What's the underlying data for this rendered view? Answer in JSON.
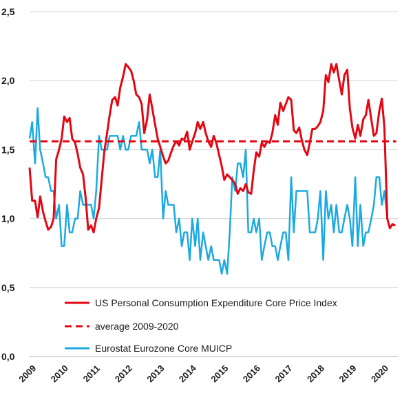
{
  "chart_data": {
    "type": "line",
    "title": "",
    "xlabel": "",
    "ylabel": "",
    "xlim": [
      2009.0,
      2020.5
    ],
    "ylim": [
      0.0,
      2.5
    ],
    "y_ticks": [
      0.0,
      0.5,
      1.0,
      1.5,
      2.0,
      2.5
    ],
    "y_tick_labels": [
      "0,0",
      "0,5",
      "1,0",
      "1,5",
      "2,0",
      "2,5"
    ],
    "x_tick_labels": [
      "2009",
      "2010",
      "2011",
      "2012",
      "2013",
      "2014",
      "2015",
      "2016",
      "2017",
      "2018",
      "2019",
      "2020"
    ],
    "grid": "horizontal",
    "legend_position": "bottom-center",
    "series": [
      {
        "name": "US Personal Consumption Expenditure Core Price Index",
        "color": "#e30613",
        "style": "solid",
        "points": [
          [
            2009.0,
            1.37
          ],
          [
            2009.08,
            1.13
          ],
          [
            2009.17,
            1.13
          ],
          [
            2009.25,
            1.01
          ],
          [
            2009.33,
            1.16
          ],
          [
            2009.42,
            1.05
          ],
          [
            2009.5,
            0.98
          ],
          [
            2009.58,
            0.92
          ],
          [
            2009.67,
            0.94
          ],
          [
            2009.75,
            1.0
          ],
          [
            2009.83,
            1.43
          ],
          [
            2009.92,
            1.5
          ],
          [
            2010.0,
            1.58
          ],
          [
            2010.08,
            1.74
          ],
          [
            2010.17,
            1.7
          ],
          [
            2010.25,
            1.73
          ],
          [
            2010.33,
            1.58
          ],
          [
            2010.42,
            1.55
          ],
          [
            2010.5,
            1.47
          ],
          [
            2010.58,
            1.37
          ],
          [
            2010.67,
            1.32
          ],
          [
            2010.75,
            1.15
          ],
          [
            2010.83,
            0.92
          ],
          [
            2010.92,
            0.95
          ],
          [
            2011.0,
            0.9
          ],
          [
            2011.08,
            1.0
          ],
          [
            2011.17,
            1.08
          ],
          [
            2011.25,
            1.28
          ],
          [
            2011.33,
            1.48
          ],
          [
            2011.42,
            1.62
          ],
          [
            2011.5,
            1.75
          ],
          [
            2011.58,
            1.86
          ],
          [
            2011.67,
            1.88
          ],
          [
            2011.75,
            1.82
          ],
          [
            2011.83,
            1.95
          ],
          [
            2011.92,
            2.03
          ],
          [
            2012.0,
            2.12
          ],
          [
            2012.08,
            2.1
          ],
          [
            2012.17,
            2.07
          ],
          [
            2012.25,
            2.0
          ],
          [
            2012.33,
            1.9
          ],
          [
            2012.42,
            1.88
          ],
          [
            2012.5,
            1.83
          ],
          [
            2012.58,
            1.62
          ],
          [
            2012.67,
            1.72
          ],
          [
            2012.75,
            1.9
          ],
          [
            2012.83,
            1.8
          ],
          [
            2012.92,
            1.68
          ],
          [
            2013.0,
            1.58
          ],
          [
            2013.08,
            1.52
          ],
          [
            2013.17,
            1.45
          ],
          [
            2013.25,
            1.4
          ],
          [
            2013.33,
            1.42
          ],
          [
            2013.42,
            1.48
          ],
          [
            2013.5,
            1.53
          ],
          [
            2013.58,
            1.56
          ],
          [
            2013.67,
            1.53
          ],
          [
            2013.75,
            1.58
          ],
          [
            2013.83,
            1.57
          ],
          [
            2013.92,
            1.63
          ],
          [
            2014.0,
            1.5
          ],
          [
            2014.08,
            1.56
          ],
          [
            2014.17,
            1.62
          ],
          [
            2014.25,
            1.7
          ],
          [
            2014.33,
            1.65
          ],
          [
            2014.42,
            1.7
          ],
          [
            2014.5,
            1.62
          ],
          [
            2014.58,
            1.56
          ],
          [
            2014.67,
            1.52
          ],
          [
            2014.75,
            1.6
          ],
          [
            2014.83,
            1.55
          ],
          [
            2014.92,
            1.46
          ],
          [
            2015.0,
            1.38
          ],
          [
            2015.08,
            1.28
          ],
          [
            2015.17,
            1.32
          ],
          [
            2015.25,
            1.3
          ],
          [
            2015.33,
            1.28
          ],
          [
            2015.42,
            1.25
          ],
          [
            2015.5,
            1.18
          ],
          [
            2015.58,
            1.22
          ],
          [
            2015.67,
            1.2
          ],
          [
            2015.75,
            1.25
          ],
          [
            2015.83,
            1.19
          ],
          [
            2015.92,
            1.18
          ],
          [
            2016.0,
            1.35
          ],
          [
            2016.08,
            1.48
          ],
          [
            2016.17,
            1.45
          ],
          [
            2016.25,
            1.55
          ],
          [
            2016.33,
            1.52
          ],
          [
            2016.42,
            1.56
          ],
          [
            2016.5,
            1.55
          ],
          [
            2016.58,
            1.62
          ],
          [
            2016.67,
            1.75
          ],
          [
            2016.75,
            1.68
          ],
          [
            2016.83,
            1.84
          ],
          [
            2016.92,
            1.78
          ],
          [
            2017.0,
            1.83
          ],
          [
            2017.08,
            1.88
          ],
          [
            2017.17,
            1.86
          ],
          [
            2017.25,
            1.64
          ],
          [
            2017.33,
            1.62
          ],
          [
            2017.42,
            1.66
          ],
          [
            2017.5,
            1.57
          ],
          [
            2017.58,
            1.5
          ],
          [
            2017.67,
            1.46
          ],
          [
            2017.75,
            1.55
          ],
          [
            2017.83,
            1.65
          ],
          [
            2017.92,
            1.65
          ],
          [
            2018.0,
            1.67
          ],
          [
            2018.08,
            1.7
          ],
          [
            2018.17,
            1.78
          ],
          [
            2018.25,
            2.04
          ],
          [
            2018.33,
            1.99
          ],
          [
            2018.42,
            2.12
          ],
          [
            2018.5,
            2.06
          ],
          [
            2018.58,
            2.12
          ],
          [
            2018.67,
            2.0
          ],
          [
            2018.75,
            1.9
          ],
          [
            2018.83,
            2.04
          ],
          [
            2018.92,
            2.08
          ],
          [
            2019.0,
            1.8
          ],
          [
            2019.08,
            1.66
          ],
          [
            2019.17,
            1.58
          ],
          [
            2019.25,
            1.68
          ],
          [
            2019.33,
            1.6
          ],
          [
            2019.42,
            1.72
          ],
          [
            2019.5,
            1.75
          ],
          [
            2019.58,
            1.86
          ],
          [
            2019.67,
            1.72
          ],
          [
            2019.75,
            1.6
          ],
          [
            2019.83,
            1.62
          ],
          [
            2019.92,
            1.78
          ],
          [
            2020.0,
            1.87
          ],
          [
            2020.08,
            1.66
          ],
          [
            2020.17,
            1.0
          ],
          [
            2020.25,
            0.93
          ],
          [
            2020.33,
            0.96
          ],
          [
            2020.42,
            0.95
          ]
        ]
      },
      {
        "name": "average 2009-2020",
        "color": "#e30613",
        "style": "dashed",
        "points": [
          [
            2009.0,
            1.56
          ],
          [
            2020.45,
            1.56
          ]
        ]
      },
      {
        "name": "Eurostat Eurozone Core MUICP",
        "color": "#1ba9e1",
        "style": "solid",
        "points": [
          [
            2009.0,
            1.58
          ],
          [
            2009.08,
            1.7
          ],
          [
            2009.17,
            1.4
          ],
          [
            2009.25,
            1.8
          ],
          [
            2009.33,
            1.5
          ],
          [
            2009.42,
            1.4
          ],
          [
            2009.5,
            1.3
          ],
          [
            2009.58,
            1.3
          ],
          [
            2009.67,
            1.2
          ],
          [
            2009.75,
            1.2
          ],
          [
            2009.83,
            1.0
          ],
          [
            2009.92,
            1.1
          ],
          [
            2010.0,
            0.8
          ],
          [
            2010.08,
            0.8
          ],
          [
            2010.17,
            1.1
          ],
          [
            2010.25,
            0.9
          ],
          [
            2010.33,
            0.9
          ],
          [
            2010.42,
            1.0
          ],
          [
            2010.5,
            1.0
          ],
          [
            2010.58,
            1.2
          ],
          [
            2010.67,
            1.1
          ],
          [
            2010.75,
            1.1
          ],
          [
            2010.83,
            1.1
          ],
          [
            2010.92,
            1.1
          ],
          [
            2011.0,
            1.0
          ],
          [
            2011.08,
            1.2
          ],
          [
            2011.17,
            1.6
          ],
          [
            2011.25,
            1.5
          ],
          [
            2011.33,
            1.5
          ],
          [
            2011.42,
            1.5
          ],
          [
            2011.5,
            1.6
          ],
          [
            2011.58,
            1.6
          ],
          [
            2011.67,
            1.6
          ],
          [
            2011.75,
            1.6
          ],
          [
            2011.83,
            1.5
          ],
          [
            2011.92,
            1.6
          ],
          [
            2012.0,
            1.5
          ],
          [
            2012.08,
            1.5
          ],
          [
            2012.17,
            1.6
          ],
          [
            2012.25,
            1.6
          ],
          [
            2012.33,
            1.6
          ],
          [
            2012.42,
            1.7
          ],
          [
            2012.5,
            1.5
          ],
          [
            2012.58,
            1.5
          ],
          [
            2012.67,
            1.5
          ],
          [
            2012.75,
            1.4
          ],
          [
            2012.83,
            1.5
          ],
          [
            2012.92,
            1.3
          ],
          [
            2013.0,
            1.3
          ],
          [
            2013.08,
            1.5
          ],
          [
            2013.17,
            1.0
          ],
          [
            2013.25,
            1.2
          ],
          [
            2013.33,
            1.1
          ],
          [
            2013.42,
            1.1
          ],
          [
            2013.5,
            1.1
          ],
          [
            2013.58,
            0.9
          ],
          [
            2013.67,
            1.0
          ],
          [
            2013.75,
            0.8
          ],
          [
            2013.83,
            0.9
          ],
          [
            2013.92,
            0.9
          ],
          [
            2014.0,
            0.7
          ],
          [
            2014.08,
            1.0
          ],
          [
            2014.17,
            0.8
          ],
          [
            2014.25,
            1.0
          ],
          [
            2014.33,
            0.7
          ],
          [
            2014.42,
            0.9
          ],
          [
            2014.5,
            0.8
          ],
          [
            2014.58,
            0.7
          ],
          [
            2014.67,
            0.8
          ],
          [
            2014.75,
            0.7
          ],
          [
            2014.83,
            0.7
          ],
          [
            2014.92,
            0.7
          ],
          [
            2015.0,
            0.6
          ],
          [
            2015.08,
            0.7
          ],
          [
            2015.17,
            0.6
          ],
          [
            2015.25,
            0.9
          ],
          [
            2015.33,
            1.3
          ],
          [
            2015.42,
            1.2
          ],
          [
            2015.5,
            1.4
          ],
          [
            2015.58,
            1.4
          ],
          [
            2015.67,
            1.3
          ],
          [
            2015.75,
            1.5
          ],
          [
            2015.83,
            0.9
          ],
          [
            2015.92,
            0.9
          ],
          [
            2016.0,
            1.0
          ],
          [
            2016.08,
            0.9
          ],
          [
            2016.17,
            1.0
          ],
          [
            2016.25,
            0.7
          ],
          [
            2016.33,
            0.8
          ],
          [
            2016.42,
            0.9
          ],
          [
            2016.5,
            0.9
          ],
          [
            2016.58,
            0.8
          ],
          [
            2016.67,
            0.8
          ],
          [
            2016.75,
            0.7
          ],
          [
            2016.83,
            0.8
          ],
          [
            2016.92,
            0.9
          ],
          [
            2017.0,
            0.9
          ],
          [
            2017.08,
            0.7
          ],
          [
            2017.17,
            1.3
          ],
          [
            2017.25,
            0.9
          ],
          [
            2017.33,
            1.2
          ],
          [
            2017.42,
            1.2
          ],
          [
            2017.5,
            1.2
          ],
          [
            2017.58,
            1.2
          ],
          [
            2017.67,
            1.2
          ],
          [
            2017.75,
            0.9
          ],
          [
            2017.83,
            0.9
          ],
          [
            2017.92,
            0.9
          ],
          [
            2018.0,
            1.0
          ],
          [
            2018.08,
            1.2
          ],
          [
            2018.17,
            0.7
          ],
          [
            2018.25,
            1.2
          ],
          [
            2018.33,
            1.0
          ],
          [
            2018.42,
            1.1
          ],
          [
            2018.5,
            0.9
          ],
          [
            2018.58,
            1.1
          ],
          [
            2018.67,
            0.9
          ],
          [
            2018.75,
            0.9
          ],
          [
            2018.83,
            1.0
          ],
          [
            2018.92,
            1.1
          ],
          [
            2019.0,
            1.0
          ],
          [
            2019.08,
            0.8
          ],
          [
            2019.17,
            1.3
          ],
          [
            2019.25,
            0.8
          ],
          [
            2019.33,
            1.1
          ],
          [
            2019.42,
            0.8
          ],
          [
            2019.5,
            0.9
          ],
          [
            2019.58,
            0.9
          ],
          [
            2019.67,
            1.0
          ],
          [
            2019.75,
            1.1
          ],
          [
            2019.83,
            1.3
          ],
          [
            2019.92,
            1.3
          ],
          [
            2020.0,
            1.1
          ],
          [
            2020.08,
            1.2
          ],
          [
            2020.17,
            1.0
          ]
        ]
      }
    ]
  }
}
